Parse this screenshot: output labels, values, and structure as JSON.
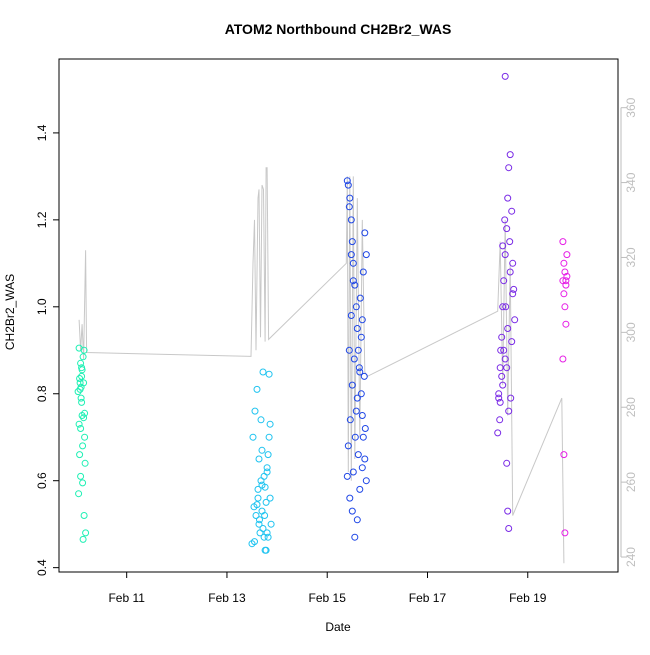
{
  "chart_data": {
    "type": "scatter",
    "title": "ATOM2 Northbound CH2Br2_WAS",
    "xlabel": "Date",
    "ylabel": "CH2Br2_WAS",
    "x_ticks": [
      "Feb 11",
      "Feb 13",
      "Feb 15",
      "Feb 17",
      "Feb 19"
    ],
    "x_tick_days": [
      11,
      13,
      15,
      17,
      19
    ],
    "xlim_days": [
      9.65,
      20.8
    ],
    "y_ticks": [
      "0.4",
      "0.6",
      "0.8",
      "1.0",
      "1.2",
      "1.4"
    ],
    "ylim": [
      0.39,
      1.57
    ],
    "y2_ticks": [
      "240",
      "260",
      "280",
      "300",
      "320",
      "340",
      "360"
    ],
    "y2lim": [
      236,
      373
    ],
    "grid": false,
    "colors": {
      "axes": "#000000",
      "secondary_axis": "#bebebe",
      "track_line": "#c8c8c8",
      "flight_colors": [
        "#1ef0b4",
        "#1ec3f0",
        "#1e46e6",
        "#7a2be6",
        "#e61ee6"
      ]
    },
    "series": [
      {
        "points": [
          [
            10.05,
            0.905
          ],
          [
            10.06,
            0.835
          ],
          [
            10.07,
            0.81
          ],
          [
            10.08,
            0.72
          ],
          [
            10.09,
            0.79
          ],
          [
            10.1,
            0.86
          ],
          [
            10.11,
            0.75
          ],
          [
            10.12,
            0.68
          ],
          [
            10.13,
            0.885
          ],
          [
            10.14,
            0.825
          ],
          [
            10.15,
            0.9
          ],
          [
            10.16,
            0.7
          ],
          [
            10.17,
            0.64
          ],
          [
            10.04,
            0.57
          ],
          [
            10.08,
            0.61
          ],
          [
            10.12,
            0.595
          ],
          [
            10.15,
            0.52
          ],
          [
            10.18,
            0.48
          ],
          [
            10.13,
            0.465
          ],
          [
            10.05,
            0.73
          ],
          [
            10.09,
            0.815
          ],
          [
            10.1,
            0.78
          ],
          [
            10.06,
            0.66
          ],
          [
            10.11,
            0.855
          ],
          [
            10.14,
            0.745
          ],
          [
            10.07,
            0.825
          ],
          [
            10.16,
            0.755
          ],
          [
            10.08,
            0.87
          ],
          [
            10.1,
            0.84
          ],
          [
            10.03,
            0.805
          ]
        ]
      },
      {
        "points": [
          [
            13.5,
            0.455
          ],
          [
            13.55,
            0.46
          ],
          [
            13.6,
            0.545
          ],
          [
            13.62,
            0.58
          ],
          [
            13.65,
            0.51
          ],
          [
            13.68,
            0.6
          ],
          [
            13.7,
            0.53
          ],
          [
            13.72,
            0.49
          ],
          [
            13.74,
            0.47
          ],
          [
            13.76,
            0.44
          ],
          [
            13.78,
            0.55
          ],
          [
            13.8,
            0.62
          ],
          [
            13.82,
            0.66
          ],
          [
            13.84,
            0.7
          ],
          [
            13.86,
            0.73
          ],
          [
            13.88,
            0.5
          ],
          [
            13.52,
            0.7
          ],
          [
            13.56,
            0.76
          ],
          [
            13.6,
            0.81
          ],
          [
            13.64,
            0.65
          ],
          [
            13.68,
            0.74
          ],
          [
            13.72,
            0.85
          ],
          [
            13.76,
            0.585
          ],
          [
            13.8,
            0.63
          ],
          [
            13.84,
            0.845
          ],
          [
            13.58,
            0.52
          ],
          [
            13.66,
            0.48
          ],
          [
            13.7,
            0.59
          ],
          [
            13.74,
            0.61
          ],
          [
            13.78,
            0.44
          ],
          [
            13.54,
            0.54
          ],
          [
            13.62,
            0.56
          ],
          [
            13.7,
            0.67
          ],
          [
            13.86,
            0.56
          ],
          [
            13.82,
            0.47
          ],
          [
            13.64,
            0.5
          ],
          [
            13.75,
            0.52
          ],
          [
            13.8,
            0.48
          ]
        ]
      },
      {
        "points": [
          [
            15.4,
            1.29
          ],
          [
            15.42,
            1.28
          ],
          [
            15.45,
            1.25
          ],
          [
            15.48,
            1.2
          ],
          [
            15.5,
            1.15
          ],
          [
            15.52,
            1.1
          ],
          [
            15.55,
            1.05
          ],
          [
            15.58,
            1.0
          ],
          [
            15.6,
            0.95
          ],
          [
            15.62,
            0.9
          ],
          [
            15.65,
            0.85
          ],
          [
            15.68,
            0.8
          ],
          [
            15.7,
            0.75
          ],
          [
            15.72,
            0.7
          ],
          [
            15.75,
            0.65
          ],
          [
            15.78,
            0.6
          ],
          [
            15.4,
            0.61
          ],
          [
            15.45,
            0.56
          ],
          [
            15.5,
            0.53
          ],
          [
            15.55,
            0.47
          ],
          [
            15.6,
            0.51
          ],
          [
            15.65,
            0.58
          ],
          [
            15.7,
            0.63
          ],
          [
            15.75,
            1.17
          ],
          [
            15.78,
            1.12
          ],
          [
            15.44,
            0.9
          ],
          [
            15.48,
            0.98
          ],
          [
            15.52,
            1.06
          ],
          [
            15.56,
            0.7
          ],
          [
            15.6,
            0.79
          ],
          [
            15.64,
            0.86
          ],
          [
            15.68,
            0.93
          ],
          [
            15.72,
            1.08
          ],
          [
            15.42,
            0.68
          ],
          [
            15.46,
            0.74
          ],
          [
            15.5,
            0.82
          ],
          [
            15.54,
            0.88
          ],
          [
            15.58,
            0.76
          ],
          [
            15.62,
            0.66
          ],
          [
            15.66,
            1.02
          ],
          [
            15.7,
            0.97
          ],
          [
            15.74,
            0.84
          ],
          [
            15.76,
            0.72
          ],
          [
            15.44,
            1.23
          ],
          [
            15.48,
            1.12
          ],
          [
            15.52,
            0.62
          ]
        ]
      },
      {
        "points": [
          [
            18.4,
            0.71
          ],
          [
            18.42,
            0.79
          ],
          [
            18.45,
            0.86
          ],
          [
            18.48,
            0.93
          ],
          [
            18.5,
            1.0
          ],
          [
            18.52,
            1.06
          ],
          [
            18.55,
            1.12
          ],
          [
            18.58,
            1.18
          ],
          [
            18.6,
            1.25
          ],
          [
            18.62,
            1.32
          ],
          [
            18.65,
            1.35
          ],
          [
            18.68,
            1.22
          ],
          [
            18.7,
            1.1
          ],
          [
            18.72,
            1.04
          ],
          [
            18.74,
            0.97
          ],
          [
            18.55,
            1.53
          ],
          [
            18.58,
            0.64
          ],
          [
            18.6,
            0.53
          ],
          [
            18.62,
            0.49
          ],
          [
            18.45,
            0.78
          ],
          [
            18.5,
            0.82
          ],
          [
            18.55,
            0.88
          ],
          [
            18.6,
            0.95
          ],
          [
            18.65,
            1.08
          ],
          [
            18.44,
            0.74
          ],
          [
            18.48,
            0.84
          ],
          [
            18.52,
            0.9
          ],
          [
            18.56,
            1.0
          ],
          [
            18.64,
            1.15
          ],
          [
            18.66,
            0.79
          ],
          [
            18.7,
            1.03
          ],
          [
            18.42,
            0.8
          ],
          [
            18.46,
            0.9
          ],
          [
            18.5,
            1.14
          ],
          [
            18.54,
            1.2
          ],
          [
            18.58,
            0.86
          ],
          [
            18.62,
            0.76
          ],
          [
            18.68,
            0.92
          ]
        ]
      },
      {
        "points": [
          [
            19.7,
            1.15
          ],
          [
            19.72,
            1.1
          ],
          [
            19.74,
            1.08
          ],
          [
            19.76,
            1.06
          ],
          [
            19.78,
            1.12
          ],
          [
            19.72,
            1.03
          ],
          [
            19.74,
            1.0
          ],
          [
            19.76,
            0.96
          ],
          [
            19.7,
            0.88
          ],
          [
            19.72,
            0.66
          ],
          [
            19.74,
            0.48
          ],
          [
            19.7,
            1.06
          ],
          [
            19.76,
            1.05
          ],
          [
            19.78,
            1.07
          ]
        ]
      }
    ],
    "track_line": [
      [
        10.05,
        0.97
      ],
      [
        10.08,
        0.9
      ],
      [
        10.11,
        0.96
      ],
      [
        10.14,
        0.88
      ],
      [
        10.18,
        1.13
      ],
      [
        10.2,
        0.895
      ],
      [
        13.48,
        0.886
      ],
      [
        13.52,
        1.1
      ],
      [
        13.55,
        1.2
      ],
      [
        13.58,
        0.9
      ],
      [
        13.62,
        1.25
      ],
      [
        13.64,
        1.27
      ],
      [
        13.67,
        0.93
      ],
      [
        13.7,
        1.28
      ],
      [
        13.73,
        1.27
      ],
      [
        13.76,
        0.92
      ],
      [
        13.78,
        1.32
      ],
      [
        13.8,
        1.32
      ],
      [
        13.83,
        0.925
      ],
      [
        15.38,
        1.1
      ],
      [
        15.4,
        1.3
      ],
      [
        15.42,
        0.62
      ],
      [
        15.45,
        1.3
      ],
      [
        15.48,
        0.6
      ],
      [
        15.52,
        1.3
      ],
      [
        15.55,
        0.65
      ],
      [
        15.6,
        1.25
      ],
      [
        15.65,
        0.7
      ],
      [
        15.7,
        1.2
      ],
      [
        15.75,
        0.85
      ],
      [
        15.8,
        0.84
      ],
      [
        18.4,
        0.99
      ],
      [
        18.45,
        1.15
      ],
      [
        18.5,
        0.82
      ],
      [
        18.55,
        1.2
      ],
      [
        18.6,
        0.75
      ],
      [
        18.65,
        1.1
      ],
      [
        18.7,
        0.52
      ],
      [
        19.68,
        0.79
      ],
      [
        19.72,
        0.41
      ]
    ]
  }
}
